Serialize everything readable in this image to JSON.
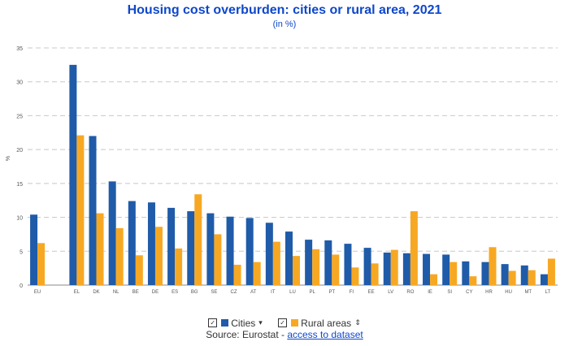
{
  "chart_data": {
    "type": "bar",
    "title": "Housing cost overburden: cities or rural area, 2021",
    "subtitle": "(in %)",
    "ylabel": "%",
    "xlabel": "",
    "ylim": [
      0,
      35
    ],
    "yticks": [
      0,
      5,
      10,
      15,
      20,
      25,
      30,
      35
    ],
    "grid": true,
    "legend_position": "bottom",
    "categories": [
      "EU",
      "",
      "EL",
      "DK",
      "NL",
      "BE",
      "DE",
      "ES",
      "BG",
      "SE",
      "CZ",
      "AT",
      "IT",
      "LU",
      "PL",
      "PT",
      "FI",
      "EE",
      "LV",
      "RO",
      "IE",
      "SI",
      "CY",
      "HR",
      "HU",
      "MT",
      "LT"
    ],
    "series": [
      {
        "name": "Cities",
        "color": "#1f5ba8",
        "values": [
          10.4,
          null,
          32.5,
          22.0,
          15.3,
          12.4,
          12.2,
          11.4,
          10.9,
          10.6,
          10.1,
          9.9,
          9.2,
          7.9,
          6.7,
          6.6,
          6.1,
          5.5,
          4.8,
          4.7,
          4.6,
          4.5,
          3.5,
          3.4,
          3.1,
          2.9,
          1.6
        ]
      },
      {
        "name": "Rural areas",
        "color": "#f7a823",
        "values": [
          6.2,
          null,
          22.1,
          10.6,
          8.4,
          4.4,
          8.6,
          5.4,
          13.4,
          7.5,
          3.0,
          3.4,
          6.4,
          4.3,
          5.3,
          4.5,
          2.6,
          3.2,
          5.2,
          10.9,
          1.6,
          3.4,
          1.3,
          5.6,
          2.1,
          2.2,
          3.9
        ]
      }
    ]
  },
  "legend": {
    "cities_label": "Cities",
    "rural_label": "Rural areas",
    "cities_sort_icon": "▾",
    "rural_sort_icon": "⇕",
    "check_icon": "✓"
  },
  "source": {
    "prefix": "Source: Eurostat - ",
    "link_text": "access to dataset"
  }
}
